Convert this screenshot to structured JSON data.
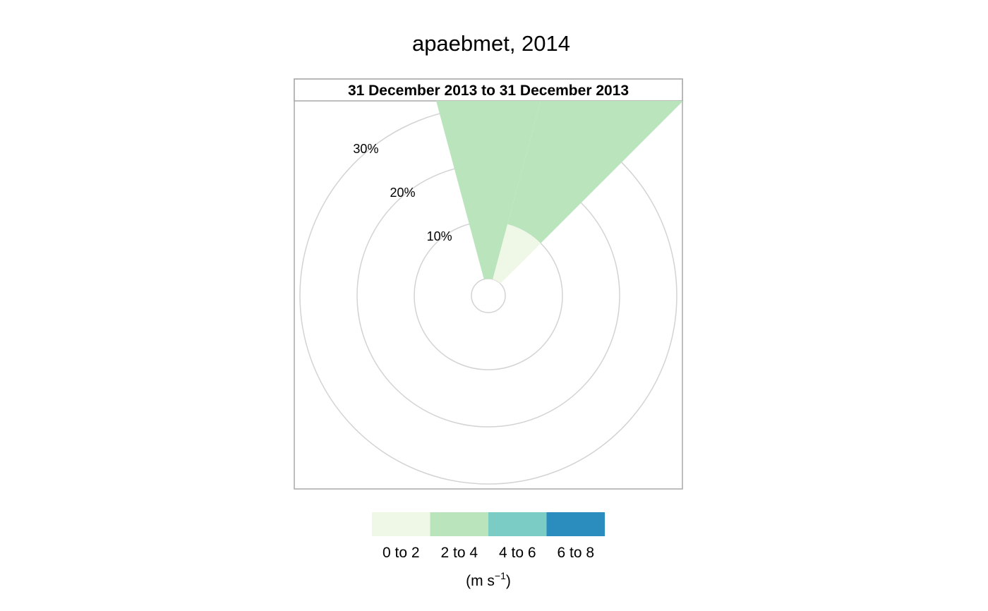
{
  "chart_data": {
    "type": "windrose",
    "title": "apaebmet, 2014",
    "panel_label": "31 December 2013 to 31 December 2013",
    "radial_axis": {
      "rings": [
        10,
        20,
        30
      ],
      "labels": [
        "10%",
        "20%",
        "30%"
      ],
      "units": "%"
    },
    "direction_bin_width_deg": 30,
    "sectors": [
      {
        "direction_deg": 0,
        "segments": [
          {
            "bin": "0 to 2",
            "frequency": 0
          },
          {
            "bin": "2 to 4",
            "frequency": 50
          }
        ]
      },
      {
        "direction_deg": 30,
        "segments": [
          {
            "bin": "0 to 2",
            "frequency": 10
          },
          {
            "bin": "2 to 4",
            "frequency": 40
          }
        ]
      }
    ],
    "legend": {
      "bins": [
        "0 to 2",
        "2 to 4",
        "4 to 6",
        "6 to 8"
      ],
      "colors": [
        "#EFF8E6",
        "#BAE4BC",
        "#7BCCC4",
        "#2B8CBE"
      ],
      "units_text": "(m s",
      "units_superscript": "−1",
      "units_close": ")"
    },
    "grid": true
  }
}
